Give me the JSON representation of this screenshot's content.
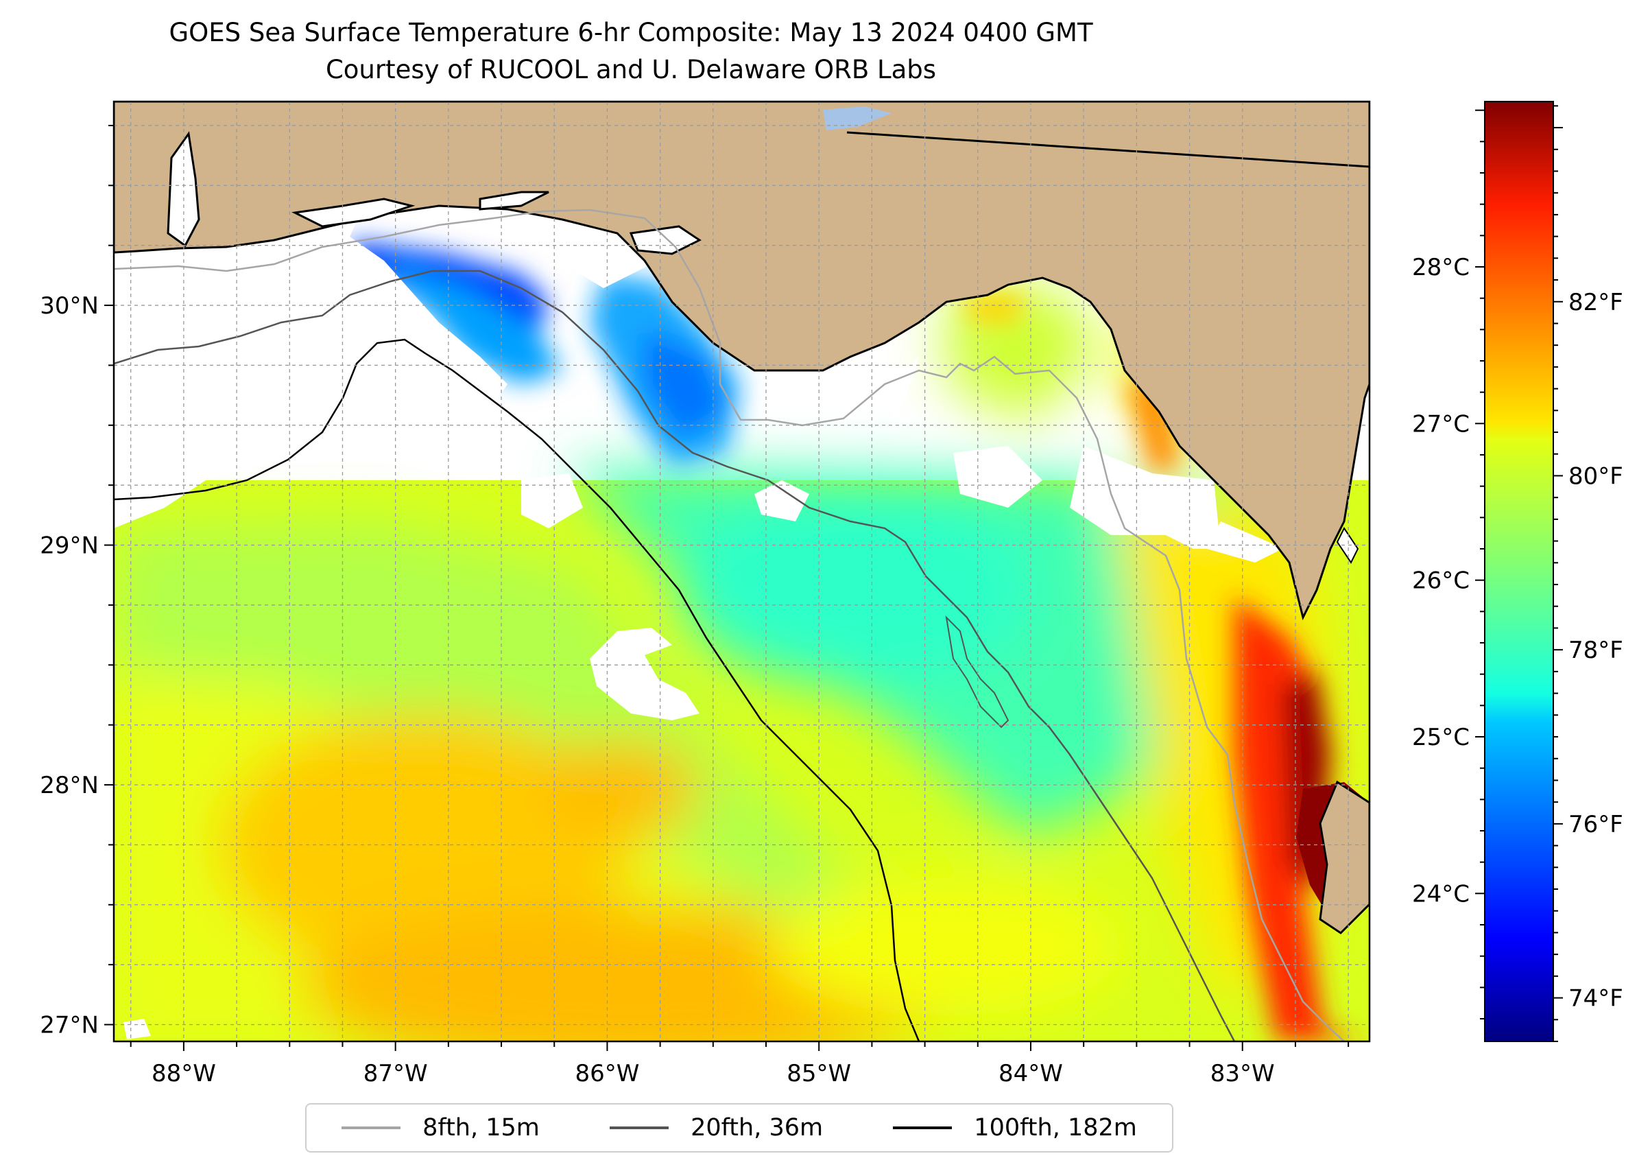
{
  "title": {
    "line1": "GOES Sea Surface Temperature 6-hr Composite: May 13 2024 0400 GMT",
    "line2": "Courtesy of RUCOOL and U. Delaware ORB Labs"
  },
  "map": {
    "lon_range": [
      -88.33,
      -82.4
    ],
    "lat_range": [
      26.93,
      30.85
    ],
    "lon_ticks": [
      {
        "value": -88,
        "label": "88°W"
      },
      {
        "value": -87,
        "label": "87°W"
      },
      {
        "value": -86,
        "label": "86°W"
      },
      {
        "value": -85,
        "label": "85°W"
      },
      {
        "value": -84,
        "label": "84°W"
      },
      {
        "value": -83,
        "label": "83°W"
      }
    ],
    "lat_ticks": [
      {
        "value": 30,
        "label": "30°N"
      },
      {
        "value": 29,
        "label": "29°N"
      },
      {
        "value": 28,
        "label": "28°N"
      },
      {
        "value": 27,
        "label": "27°N"
      }
    ],
    "grid_spacing_deg": 0.25,
    "grid": true,
    "colors": {
      "land": "#d2b48c",
      "no_data": "#ffffff",
      "lake": "#a4c3e6"
    }
  },
  "legend": {
    "placement": "bottom-center",
    "items": [
      {
        "label": "8fth, 15m",
        "color": "#a6a6a6"
      },
      {
        "label": "20fth, 36m",
        "color": "#555555"
      },
      {
        "label": "100fth, 182m",
        "color": "#000000"
      }
    ]
  },
  "colorbar": {
    "colormap": "jet",
    "range_f": [
      73.5,
      84.3
    ],
    "f_ticks": [
      {
        "value": 74,
        "label": "74°F"
      },
      {
        "value": 76,
        "label": "76°F"
      },
      {
        "value": 78,
        "label": "78°F"
      },
      {
        "value": 80,
        "label": "80°F"
      },
      {
        "value": 82,
        "label": "82°F"
      }
    ],
    "c_ticks": [
      {
        "value": 24,
        "label": "24°C"
      },
      {
        "value": 25,
        "label": "25°C"
      },
      {
        "value": 26,
        "label": "26°C"
      },
      {
        "value": 27,
        "label": "27°C"
      },
      {
        "value": 28,
        "label": "28°C"
      }
    ]
  },
  "chart_data": {
    "type": "heatmap",
    "variable": "sea surface temperature",
    "units": "°F",
    "value_range_f": [
      73.5,
      84.3
    ]
  }
}
